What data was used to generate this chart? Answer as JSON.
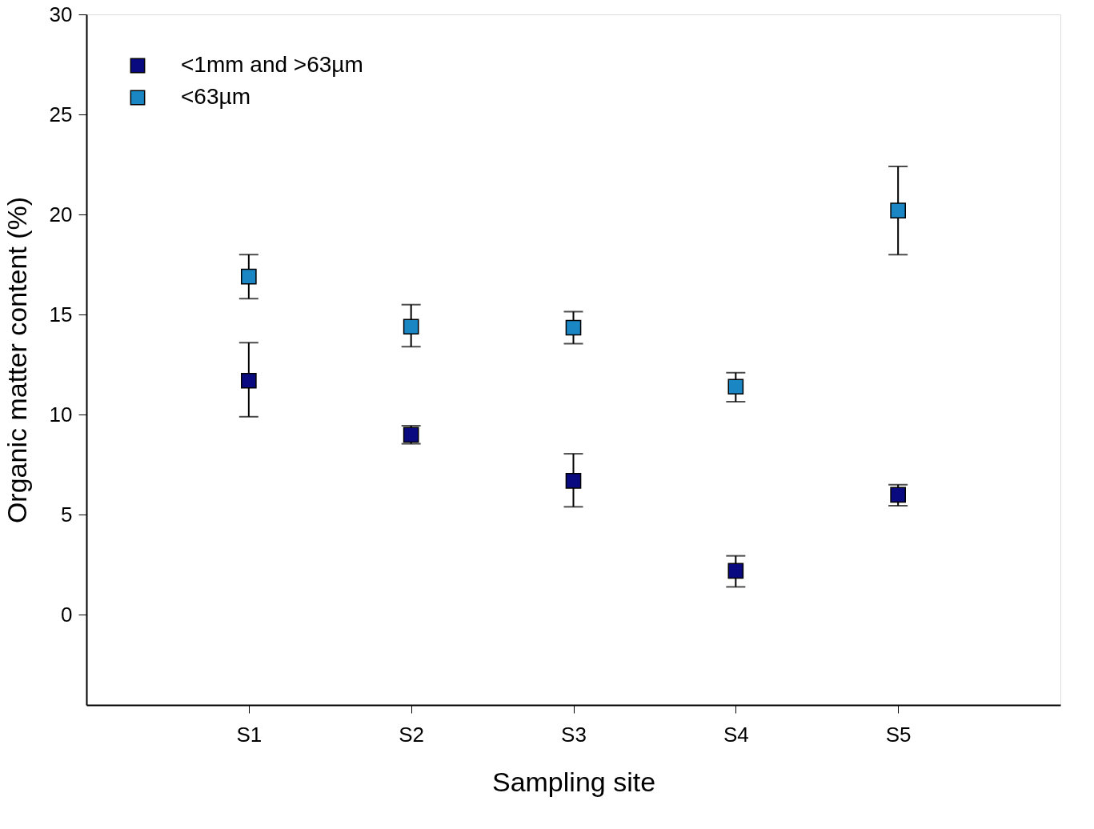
{
  "chart_data": {
    "type": "scatter",
    "xlabel": "Sampling site",
    "ylabel": "Organic matter content (%)",
    "categories": [
      "S1",
      "S2",
      "S3",
      "S4",
      "S5"
    ],
    "series": [
      {
        "name": "<1mm and >63µm",
        "color": "#0a0a80",
        "values": [
          11.7,
          9.0,
          6.7,
          2.2,
          6.0
        ],
        "errors": [
          [
            9.9,
            13.6
          ],
          [
            8.55,
            9.45
          ],
          [
            5.4,
            8.05
          ],
          [
            1.4,
            2.95
          ],
          [
            5.45,
            6.5
          ]
        ]
      },
      {
        "name": "<63µm",
        "color": "#1a86c4",
        "values": [
          16.9,
          14.4,
          14.35,
          11.4,
          20.2
        ],
        "errors": [
          [
            15.8,
            18.0
          ],
          [
            13.4,
            15.5
          ],
          [
            13.55,
            15.15
          ],
          [
            10.65,
            12.1
          ],
          [
            18.0,
            22.4
          ]
        ]
      }
    ],
    "ylim": [
      -4.5,
      30
    ],
    "yticks": [
      0,
      5,
      10,
      15,
      20,
      25,
      30
    ],
    "grid": false,
    "legend": "top left",
    "marker": "square"
  }
}
